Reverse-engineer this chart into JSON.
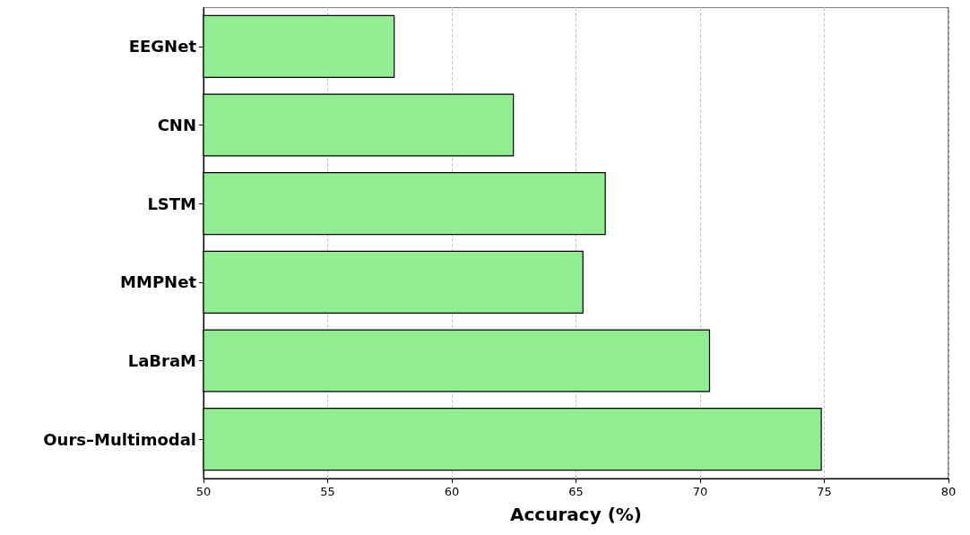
{
  "chart_data": {
    "type": "bar",
    "orientation": "horizontal",
    "xlabel": "Accuracy (%)",
    "categories": [
      "EEGNet",
      "CNN",
      "LSTM",
      "MMPNet",
      "LaBraM",
      "Ours–Multimodal"
    ],
    "values": [
      57.7,
      62.5,
      66.2,
      65.3,
      70.4,
      74.9
    ],
    "color": "#90ee90",
    "xlim": [
      50,
      80
    ],
    "xticks": [
      50,
      55,
      60,
      65,
      70,
      75,
      80
    ],
    "grid": "x"
  }
}
